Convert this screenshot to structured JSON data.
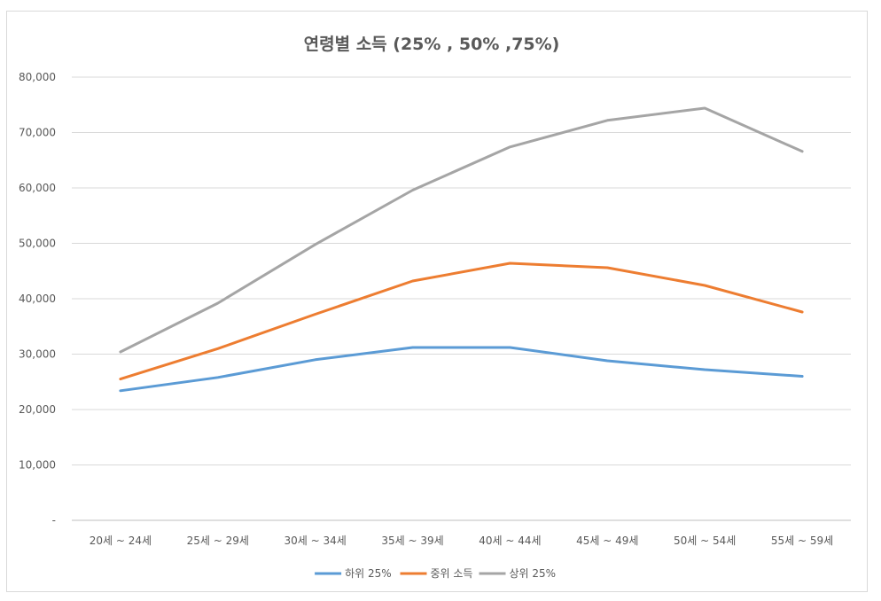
{
  "chart_data": {
    "type": "line",
    "title": "연령별 소득 (25% , 50% ,75%)",
    "xlabel": "",
    "ylabel": "",
    "categories": [
      "20세 ~ 24세",
      "25세 ~ 29세",
      "30세 ~ 34세",
      "35세 ~ 39세",
      "40세 ~ 44세",
      "45세 ~ 49세",
      "50세 ~ 54세",
      "55세 ~ 59세"
    ],
    "ylim": [
      0,
      80000
    ],
    "ytick_values": [
      0,
      10000,
      20000,
      30000,
      40000,
      50000,
      60000,
      70000,
      80000
    ],
    "ytick_labels": [
      "-",
      "10,000",
      "20,000",
      "30,000",
      "40,000",
      "50,000",
      "60,000",
      "70,000",
      "80,000"
    ],
    "grid": true,
    "legend_position": "bottom",
    "series": [
      {
        "name": "하위 25%",
        "color": "#5b9bd5",
        "values": [
          23400,
          25800,
          29000,
          31200,
          31200,
          28800,
          27200,
          26000
        ]
      },
      {
        "name": "중위 소득",
        "color": "#ed7d31",
        "values": [
          25500,
          31000,
          37200,
          43200,
          46400,
          45600,
          42400,
          37600
        ]
      },
      {
        "name": "상위 25%",
        "color": "#a5a5a5",
        "values": [
          30400,
          39200,
          49800,
          59600,
          67400,
          72200,
          74400,
          66600
        ]
      }
    ]
  }
}
